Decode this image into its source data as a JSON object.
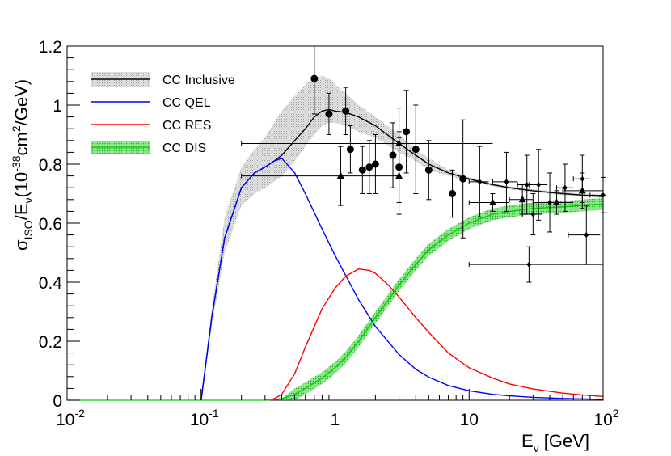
{
  "chart_data": {
    "type": "line",
    "title": "",
    "x_scale": "log",
    "xlim": [
      0.01,
      100
    ],
    "ylim": [
      0,
      1.2
    ],
    "xlabel": {
      "main": "E",
      "sub": "ν",
      "unit": " [GeV]"
    },
    "ylabel": {
      "sigma": "σ",
      "sub1": "ISO",
      "mid": "/E",
      "sub2": "ν",
      "open": "(10",
      "exp1": "-38",
      "cm": "cm",
      "exp2": "2",
      "close": "/GeV)"
    },
    "x_ticks": [
      {
        "value": 0.01,
        "base": "10",
        "exp": "-2"
      },
      {
        "value": 0.1,
        "base": "10",
        "exp": "-1"
      },
      {
        "value": 1,
        "base": "1",
        "exp": ""
      },
      {
        "value": 10,
        "base": "10",
        "exp": ""
      },
      {
        "value": 100,
        "base": "10",
        "exp": "2"
      }
    ],
    "y_ticks": [
      {
        "value": 0,
        "label": "0"
      },
      {
        "value": 0.2,
        "label": "0.2"
      },
      {
        "value": 0.4,
        "label": "0.4"
      },
      {
        "value": 0.6,
        "label": "0.6"
      },
      {
        "value": 0.8,
        "label": "0.8"
      },
      {
        "value": 1.0,
        "label": "1"
      },
      {
        "value": 1.2,
        "label": "1.2"
      }
    ],
    "legend": {
      "placement": "top-left",
      "entries": [
        {
          "key": "inclusive",
          "label": "CC Inclusive"
        },
        {
          "key": "qel",
          "label": "CC QEL"
        },
        {
          "key": "res",
          "label": "CC RES"
        },
        {
          "key": "dis",
          "label": "CC DIS"
        }
      ]
    },
    "series": [
      {
        "key": "inclusive",
        "name": "CC Inclusive",
        "color": "#000000",
        "x": [
          0.1,
          0.12,
          0.15,
          0.2,
          0.25,
          0.3,
          0.35,
          0.4,
          0.5,
          0.6,
          0.7,
          0.8,
          0.9,
          1.0,
          1.2,
          1.5,
          2,
          3,
          4,
          5,
          7,
          10,
          15,
          20,
          30,
          50,
          70,
          100
        ],
        "y": [
          0,
          0.28,
          0.55,
          0.72,
          0.77,
          0.79,
          0.81,
          0.83,
          0.88,
          0.92,
          0.96,
          0.98,
          0.985,
          0.98,
          0.975,
          0.96,
          0.93,
          0.87,
          0.83,
          0.8,
          0.77,
          0.75,
          0.73,
          0.72,
          0.71,
          0.7,
          0.695,
          0.69
        ],
        "band_low": [
          0,
          0.25,
          0.5,
          0.66,
          0.7,
          0.72,
          0.74,
          0.76,
          0.81,
          0.86,
          0.9,
          0.93,
          0.94,
          0.94,
          0.93,
          0.91,
          0.89,
          0.84,
          0.81,
          0.78,
          0.76,
          0.745,
          0.725,
          0.715,
          0.705,
          0.695,
          0.69,
          0.685
        ],
        "band_high": [
          0,
          0.31,
          0.62,
          0.79,
          0.85,
          0.89,
          0.94,
          0.98,
          1.03,
          1.07,
          1.09,
          1.1,
          1.09,
          1.07,
          1.04,
          1.0,
          0.96,
          0.9,
          0.85,
          0.82,
          0.78,
          0.755,
          0.735,
          0.725,
          0.715,
          0.705,
          0.7,
          0.695
        ]
      },
      {
        "key": "qel",
        "name": "CC QEL",
        "color": "#0000ff",
        "x": [
          0.1,
          0.12,
          0.15,
          0.2,
          0.25,
          0.3,
          0.35,
          0.4,
          0.5,
          0.6,
          0.8,
          1.0,
          1.5,
          2,
          3,
          4,
          5,
          7,
          10,
          15,
          20,
          30,
          50,
          100
        ],
        "y": [
          0,
          0.28,
          0.55,
          0.72,
          0.77,
          0.79,
          0.81,
          0.82,
          0.77,
          0.7,
          0.58,
          0.49,
          0.34,
          0.25,
          0.155,
          0.105,
          0.078,
          0.05,
          0.032,
          0.02,
          0.015,
          0.01,
          0.006,
          0.003
        ]
      },
      {
        "key": "res",
        "name": "CC RES",
        "color": "#ff0000",
        "x": [
          0.3,
          0.35,
          0.4,
          0.5,
          0.6,
          0.7,
          0.8,
          1.0,
          1.2,
          1.5,
          1.8,
          2,
          2.5,
          3,
          4,
          5,
          7,
          10,
          15,
          20,
          30,
          50,
          70,
          100
        ],
        "y": [
          0,
          0.005,
          0.02,
          0.09,
          0.18,
          0.25,
          0.31,
          0.38,
          0.42,
          0.445,
          0.44,
          0.43,
          0.39,
          0.35,
          0.28,
          0.23,
          0.16,
          0.11,
          0.075,
          0.055,
          0.038,
          0.024,
          0.018,
          0.013
        ]
      },
      {
        "key": "dis",
        "name": "CC DIS",
        "color": "#00cc00",
        "x": [
          0.3,
          0.4,
          0.5,
          0.6,
          0.8,
          1.0,
          1.2,
          1.5,
          2,
          2.5,
          3,
          4,
          5,
          7,
          10,
          15,
          20,
          30,
          50,
          70,
          100
        ],
        "y": [
          0,
          0.005,
          0.02,
          0.04,
          0.075,
          0.11,
          0.145,
          0.2,
          0.28,
          0.34,
          0.39,
          0.46,
          0.51,
          0.56,
          0.6,
          0.63,
          0.64,
          0.65,
          0.655,
          0.66,
          0.665
        ],
        "band_halfwidth": 0.02
      }
    ],
    "data_points": [
      {
        "marker": "circle",
        "x": 0.7,
        "y": 1.09,
        "xerr": [
          0.7,
          0.7
        ],
        "yerr": 0.12
      },
      {
        "marker": "circle",
        "x": 0.9,
        "y": 0.97,
        "xerr": [
          0.9,
          0.9
        ],
        "yerr": 0.07
      },
      {
        "marker": "circle",
        "x": 1.2,
        "y": 0.98,
        "xerr": [
          1.2,
          1.2
        ],
        "yerr": 0.08
      },
      {
        "marker": "circle",
        "x": 1.3,
        "y": 0.85,
        "xerr": [
          1.3,
          1.3
        ],
        "yerr": 0.08
      },
      {
        "marker": "circle",
        "x": 1.6,
        "y": 0.78,
        "xerr": [
          1.6,
          1.6
        ],
        "yerr": 0.08
      },
      {
        "marker": "circle",
        "x": 1.8,
        "y": 0.79,
        "xerr": [
          1.8,
          1.8
        ],
        "yerr": 0.09
      },
      {
        "marker": "circle",
        "x": 2.0,
        "y": 0.8,
        "xerr": [
          2.0,
          2.0
        ],
        "yerr": 0.1
      },
      {
        "marker": "circle",
        "x": 2.7,
        "y": 0.83,
        "xerr": [
          2.7,
          2.7
        ],
        "yerr": 0.11
      },
      {
        "marker": "circle",
        "x": 3.0,
        "y": 0.79,
        "xerr": [
          3.0,
          3.0
        ],
        "yerr": 0.12
      },
      {
        "marker": "circle",
        "x": 3.4,
        "y": 0.91,
        "xerr": [
          3.4,
          3.4
        ],
        "yerr": 0.14
      },
      {
        "marker": "circle",
        "x": 4.0,
        "y": 0.85,
        "xerr": [
          4.0,
          4.0
        ],
        "yerr": 0.15
      },
      {
        "marker": "circle",
        "x": 5.0,
        "y": 0.78,
        "xerr": [
          5.0,
          5.0
        ],
        "yerr": 0.1
      },
      {
        "marker": "circle",
        "x": 7.5,
        "y": 0.7,
        "xerr": [
          7.5,
          7.5
        ],
        "yerr": 0.08
      },
      {
        "marker": "circle",
        "x": 9.0,
        "y": 0.75,
        "xerr": [
          9.0,
          9.0
        ],
        "yerr": 0.2
      },
      {
        "marker": "triangle",
        "x": 1.1,
        "y": 0.76,
        "xerr": [
          0.2,
          3.0
        ],
        "yerr": 0.1
      },
      {
        "marker": "triangle",
        "x": 1.1,
        "y": 0.76,
        "xerr": [
          1.1,
          1.1
        ],
        "yerr": 0.1
      },
      {
        "marker": "triangle",
        "x": 3.0,
        "y": 0.87,
        "xerr": [
          0.2,
          15
        ],
        "yerr": 0.12
      },
      {
        "marker": "triangle",
        "x": 3.0,
        "y": 0.76,
        "xerr": [
          3.0,
          3.0
        ],
        "yerr": 0.13
      },
      {
        "marker": "triangle",
        "x": 15,
        "y": 0.67,
        "xerr": [
          10,
          20
        ],
        "yerr": 0.03
      },
      {
        "marker": "triangle",
        "x": 25,
        "y": 0.68,
        "xerr": [
          20,
          30
        ],
        "yerr": 0.05
      },
      {
        "marker": "triangle",
        "x": 45,
        "y": 0.67,
        "xerr": [
          30,
          60
        ],
        "yerr": 0.04
      },
      {
        "marker": "triangle",
        "x": 70,
        "y": 0.71,
        "xerr": [
          50,
          100
        ],
        "yerr": 0.06
      },
      {
        "marker": "diamond",
        "x": 12,
        "y": 0.74,
        "xerr": [
          10,
          14
        ],
        "yerr": 0.12
      },
      {
        "marker": "diamond",
        "x": 19,
        "y": 0.74,
        "xerr": [
          15,
          23
        ],
        "yerr": 0.1
      },
      {
        "marker": "diamond",
        "x": 27,
        "y": 0.73,
        "xerr": [
          23,
          32
        ],
        "yerr": 0.1
      },
      {
        "marker": "diamond",
        "x": 33,
        "y": 0.73,
        "xerr": [
          28,
          38
        ],
        "yerr": 0.12
      },
      {
        "marker": "diamond",
        "x": 40,
        "y": 0.67,
        "xerr": [
          35,
          45
        ],
        "yerr": 0.1
      },
      {
        "marker": "diamond",
        "x": 52,
        "y": 0.72,
        "xerr": [
          45,
          60
        ],
        "yerr": 0.08
      },
      {
        "marker": "diamond",
        "x": 70,
        "y": 0.75,
        "xerr": [
          60,
          80
        ],
        "yerr": 0.08
      },
      {
        "marker": "diamond",
        "x": 30,
        "y": 0.63,
        "xerr": [
          25,
          35
        ],
        "yerr": 0.07
      },
      {
        "marker": "diamond",
        "x": 28,
        "y": 0.46,
        "xerr": [
          10,
          100
        ],
        "yerr": 0.06
      },
      {
        "marker": "diamond",
        "x": 75,
        "y": 0.56,
        "xerr": [
          55,
          95
        ],
        "yerr": 0.1
      },
      {
        "marker": "diamond",
        "x": 100,
        "y": 0.695,
        "xerr": [
          80,
          100
        ],
        "yerr": 0.06
      }
    ]
  }
}
